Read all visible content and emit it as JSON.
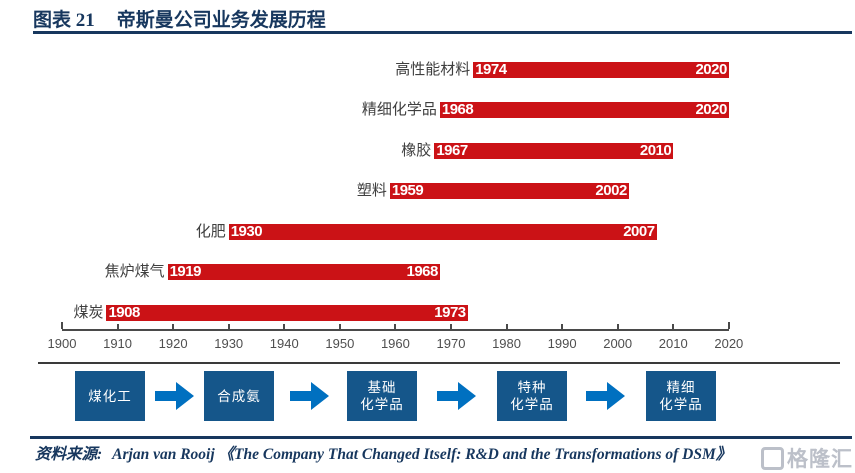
{
  "header": {
    "figure_label": "图表 21",
    "title": "帝斯曼公司业务发展历程"
  },
  "chart_data": {
    "type": "bar",
    "subtype": "timeline-gantt",
    "title": "帝斯曼公司业务发展历程",
    "xlabel": "",
    "ylabel": "",
    "axis": {
      "min": 1900,
      "max": 2020,
      "step": 10
    },
    "tick_labels": [
      "1900",
      "1910",
      "1920",
      "1930",
      "1940",
      "1950",
      "1960",
      "1970",
      "1980",
      "1990",
      "2000",
      "2010",
      "2020"
    ],
    "series": [
      {
        "label": "高性能材料",
        "start": 1974,
        "end": 2020
      },
      {
        "label": "精细化学品",
        "start": 1968,
        "end": 2020
      },
      {
        "label": "橡胶",
        "start": 1967,
        "end": 2010
      },
      {
        "label": "塑料",
        "start": 1959,
        "end": 2002
      },
      {
        "label": "化肥",
        "start": 1930,
        "end": 2007
      },
      {
        "label": "焦炉煤气",
        "start": 1919,
        "end": 1968
      },
      {
        "label": "煤炭",
        "start": 1908,
        "end": 1973
      }
    ],
    "colors": {
      "bar": "#cb1216",
      "bar_text": "#ffffff",
      "label_text": "#3f3f3f",
      "axis": "#4a4a4a"
    },
    "grid": false,
    "legend": null
  },
  "flow": {
    "steps": [
      {
        "lines": [
          "煤化工"
        ]
      },
      {
        "lines": [
          "合成氨"
        ]
      },
      {
        "lines": [
          "基础",
          "化学品"
        ]
      },
      {
        "lines": [
          "特种",
          "化学品"
        ]
      },
      {
        "lines": [
          "精细",
          "化学品"
        ]
      }
    ],
    "colors": {
      "box": "#15568a",
      "arrow": "#0070c0",
      "text": "#ffffff"
    }
  },
  "source": {
    "label": "资料来源:",
    "text": "Arjan van Rooij 《The Company That Changed Itself: R&D and the Transformations of DSM》"
  },
  "watermark": {
    "text": "格隆汇"
  },
  "colors": {
    "accent_navy": "#17375e"
  }
}
